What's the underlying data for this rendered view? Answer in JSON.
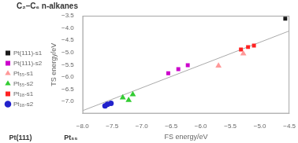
{
  "chart_data": {
    "type": "scatter",
    "title": "C₂–C₆ n-alkanes",
    "annotations": [
      "Pt(111)",
      "Pt₅₅"
    ],
    "xlabel": "FS energy/eV",
    "ylabel": "TS energy/eV",
    "xlim": [
      -8.0,
      -4.5
    ],
    "ylim": [
      -7.5,
      -3.5
    ],
    "xticks": [
      {
        "value": -8.0,
        "label": "−8.0"
      },
      {
        "value": -7.5,
        "label": "−7.5"
      },
      {
        "value": -7.0,
        "label": "−7.0"
      },
      {
        "value": -6.5,
        "label": "−6.5"
      },
      {
        "value": -6.0,
        "label": "−6.0"
      },
      {
        "value": -5.5,
        "label": "−5.5"
      },
      {
        "value": -5.0,
        "label": "−5.0"
      },
      {
        "value": -4.5,
        "label": "−4.5"
      }
    ],
    "yticks": [
      {
        "value": -7.0,
        "label": "−7.0"
      },
      {
        "value": -6.5,
        "label": "−6.5"
      },
      {
        "value": -6.0,
        "label": "−6.0"
      },
      {
        "value": -5.5,
        "label": "−5.5"
      },
      {
        "value": -5.0,
        "label": "−5.0"
      },
      {
        "value": -4.5,
        "label": "−4.5"
      },
      {
        "value": -4.0,
        "label": "−4.0"
      },
      {
        "value": -3.5,
        "label": "−3.5"
      }
    ],
    "grid": false,
    "legend": "left",
    "series": [
      {
        "name": "Pt(111)-s1",
        "color": "#1a1a1a",
        "marker": "square",
        "x": [
          -4.57
        ],
        "values": [
          -3.62
        ]
      },
      {
        "name": "Pt(111)-s2",
        "color": "#CC00CC",
        "marker": "square",
        "x": [
          -6.55,
          -6.38,
          -6.22
        ],
        "values": [
          -5.85,
          -5.68,
          -5.52
        ]
      },
      {
        "name": "Pt₅₅-s1",
        "color": "#FF9999",
        "marker": "triangle",
        "x": [
          -5.28,
          -5.7
        ],
        "values": [
          -5.05,
          -5.55
        ]
      },
      {
        "name": "Pt₅₅-s2",
        "color": "#33CC33",
        "marker": "triangle",
        "x": [
          -7.32,
          -7.22,
          -7.15
        ],
        "values": [
          -6.85,
          -6.95,
          -6.72
        ]
      },
      {
        "name": "Pt₃₈-s1",
        "color": "#FF2222",
        "marker": "square",
        "x": [
          -5.2,
          -5.1,
          -5.32
        ],
        "values": [
          -4.78,
          -4.72,
          -4.88
        ]
      },
      {
        "name": "Pt₃₈-s2",
        "color": "#2222CC",
        "marker": "circle",
        "x": [
          -7.58,
          -7.62,
          -7.52
        ],
        "values": [
          -7.12,
          -7.18,
          -7.08
        ]
      }
    ],
    "trendline": {
      "x": [
        -8.0,
        -4.5
      ],
      "values": [
        -7.38,
        -4.12
      ],
      "color": "#AAAAAA"
    }
  }
}
